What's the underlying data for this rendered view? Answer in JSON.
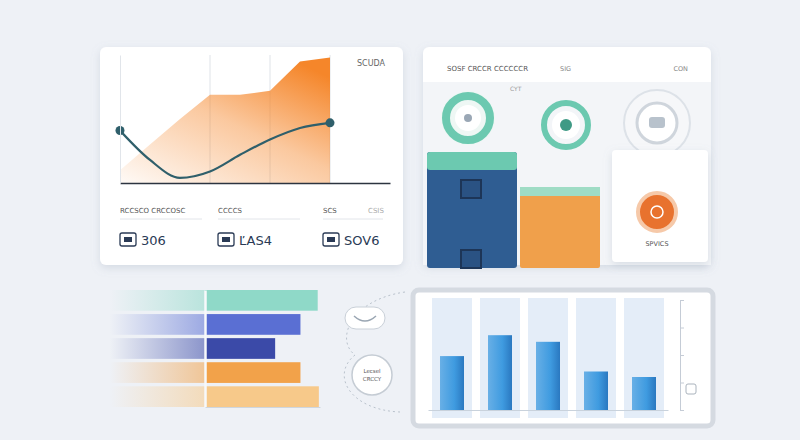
{
  "chart_data": [
    {
      "type": "line",
      "title": "SCUDA",
      "x": [
        0,
        1,
        2,
        3,
        4,
        5,
        6,
        7
      ],
      "xlim": [
        0,
        9
      ],
      "xticks": [
        3,
        5,
        7
      ],
      "ylim": [
        0,
        100
      ],
      "yticks": [
        0,
        100
      ],
      "grid": true,
      "tick_labels": false,
      "series": [
        {
          "type": "area",
          "color": "#f5862a",
          "values": [
            10,
            30,
            50,
            69,
            69,
            72,
            95,
            98
          ]
        },
        {
          "type": "line",
          "color": "#2f5f6b",
          "marker": "endpoints",
          "values": [
            41,
            18,
            4,
            9,
            22,
            34,
            43,
            47
          ]
        }
      ]
    },
    {
      "type": "bar",
      "orientation": "horizontal",
      "categories": [
        null,
        null,
        null,
        null,
        null
      ],
      "values": [
        98,
        83,
        61,
        83,
        99
      ],
      "colors": [
        "#8fd9c8",
        "#5a6fd3",
        "#3b4aa8",
        "#f2a24a",
        "#f7c98a"
      ],
      "xlim": [
        0,
        100
      ],
      "tick_labels": false
    },
    {
      "type": "bar",
      "categories": [
        null,
        null,
        null,
        null,
        null
      ],
      "values": [
        49,
        68,
        62,
        35,
        30
      ],
      "color": "#3f9be0",
      "ylim": [
        0,
        100
      ],
      "yticks": [
        0,
        25,
        50,
        75,
        100
      ],
      "tick_labels": false
    }
  ],
  "kpis": [
    {
      "label": "RCCSCO CRCCOSC",
      "value": "306"
    },
    {
      "label": "CCCCS",
      "value": "ĽAS4"
    },
    {
      "label": "SCS",
      "tag": "CSIS",
      "value": "SOV6"
    }
  ],
  "status_panel": {
    "header": "SOSF CRCCR CCCCCCR",
    "header_tags": [
      "SIG",
      "CON"
    ],
    "caption": "CYT",
    "badge_label": "SPVICS"
  },
  "connector": {
    "labels": [
      "Lecsel",
      "CRCCY"
    ]
  }
}
